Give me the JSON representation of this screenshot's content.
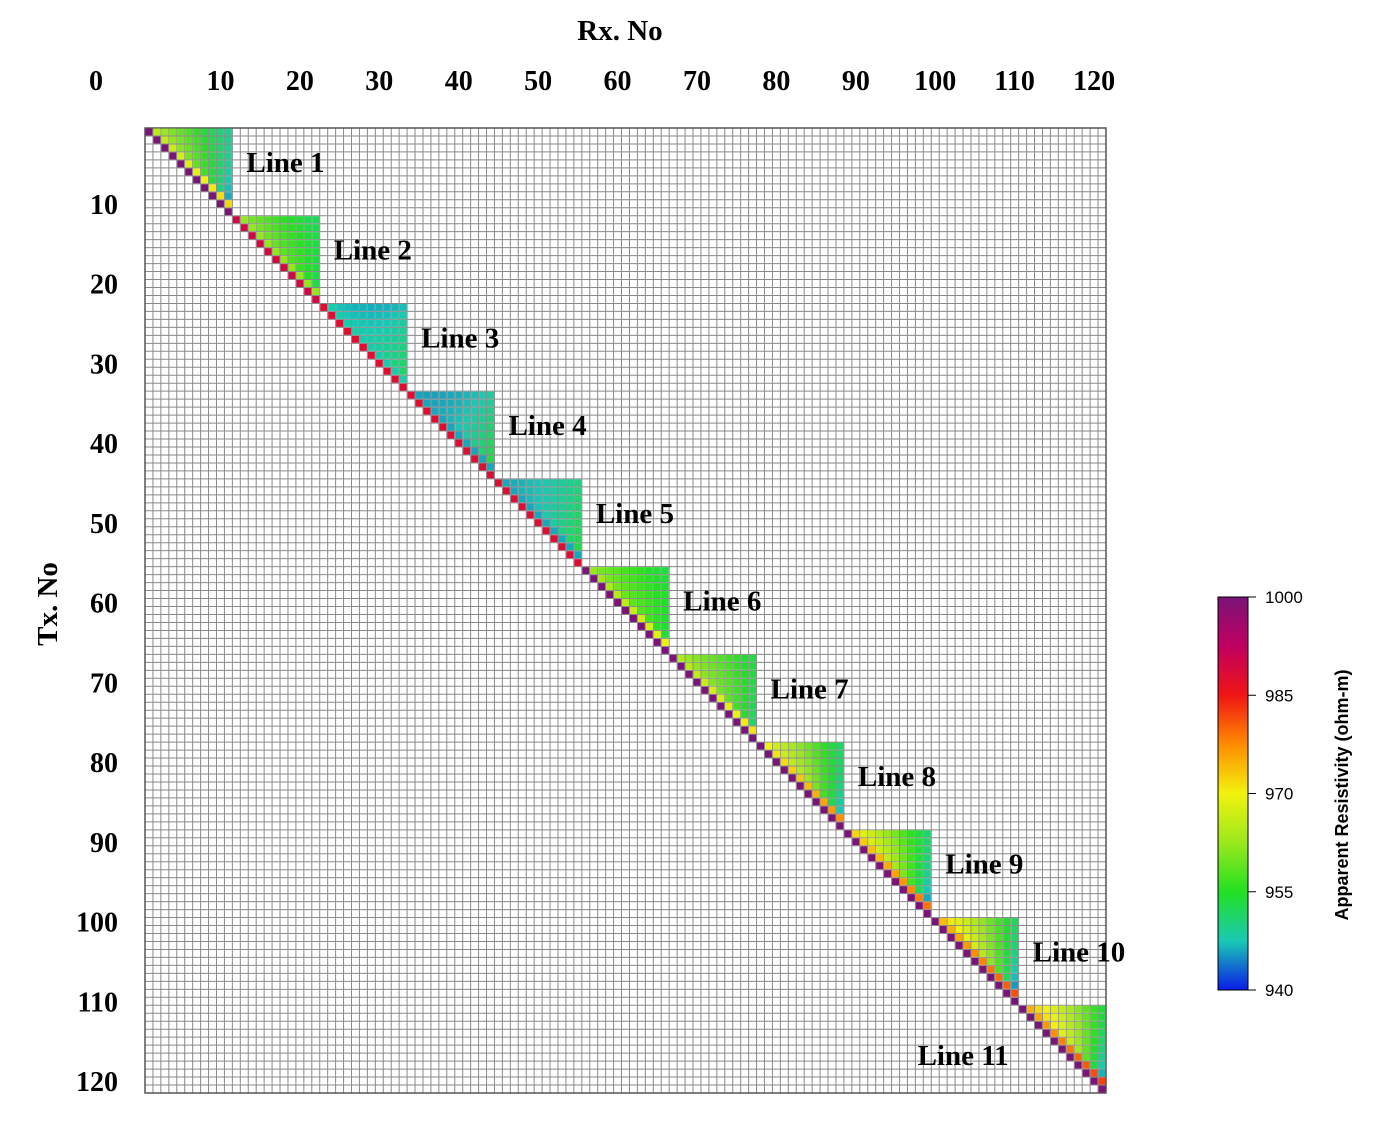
{
  "chart_data": {
    "type": "heatmap",
    "xlabel": "Rx. No",
    "ylabel": "Tx. No",
    "x_ticks": [
      0,
      10,
      20,
      30,
      40,
      50,
      60,
      70,
      80,
      90,
      100,
      110,
      120
    ],
    "y_ticks": [
      10,
      20,
      30,
      40,
      50,
      60,
      70,
      80,
      90,
      100,
      110,
      120
    ],
    "xlim": [
      0,
      121
    ],
    "ylim": [
      0,
      121
    ],
    "grid": true,
    "colorbar": {
      "label": "Apparent Resistivity (ohm-m)",
      "ticks": [
        940,
        955,
        970,
        985,
        1000
      ],
      "range": [
        940,
        1000
      ],
      "colormap": [
        "#0a1ce6",
        "#19c9b4",
        "#22e022",
        "#9be81c",
        "#f2f20f",
        "#ff8c00",
        "#f01515",
        "#c00060",
        "#7a1478"
      ]
    },
    "lines": [
      {
        "name": "Line 1",
        "tx_range": [
          1,
          11
        ],
        "rx_range": [
          1,
          11
        ],
        "diagonal": 1000,
        "near_diag": 965,
        "mid": 956,
        "far": 944
      },
      {
        "name": "Line 2",
        "tx_range": [
          12,
          22
        ],
        "rx_range": [
          12,
          22
        ],
        "diagonal": 990,
        "near_diag": 962,
        "mid": 955,
        "far": 952
      },
      {
        "name": "Line 3",
        "tx_range": [
          23,
          33
        ],
        "rx_range": [
          23,
          33
        ],
        "diagonal": 988,
        "near_diag": 948,
        "mid": 945,
        "far": 952
      },
      {
        "name": "Line 4",
        "tx_range": [
          34,
          44
        ],
        "rx_range": [
          34,
          44
        ],
        "diagonal": 988,
        "near_diag": 946,
        "mid": 945,
        "far": 954
      },
      {
        "name": "Line 5",
        "tx_range": [
          45,
          55
        ],
        "rx_range": [
          45,
          55
        ],
        "diagonal": 988,
        "near_diag": 946,
        "mid": 947,
        "far": 954
      },
      {
        "name": "Line 6",
        "tx_range": [
          56,
          66
        ],
        "rx_range": [
          56,
          66
        ],
        "diagonal": 1000,
        "near_diag": 962,
        "mid": 956,
        "far": 953
      },
      {
        "name": "Line 7",
        "tx_range": [
          67,
          77
        ],
        "rx_range": [
          67,
          77
        ],
        "diagonal": 1000,
        "near_diag": 964,
        "mid": 958,
        "far": 950
      },
      {
        "name": "Line 8",
        "tx_range": [
          78,
          88
        ],
        "rx_range": [
          78,
          88
        ],
        "diagonal": 1000,
        "near_diag": 970,
        "mid": 960,
        "far": 945
      },
      {
        "name": "Line 9",
        "tx_range": [
          89,
          99
        ],
        "rx_range": [
          89,
          99
        ],
        "diagonal": 1000,
        "near_diag": 972,
        "mid": 961,
        "far": 943
      },
      {
        "name": "Line 10",
        "tx_range": [
          100,
          110
        ],
        "rx_range": [
          100,
          110
        ],
        "diagonal": 1000,
        "near_diag": 974,
        "mid": 963,
        "far": 942
      },
      {
        "name": "Line 11",
        "tx_range": [
          111,
          121
        ],
        "rx_range": [
          111,
          121
        ],
        "diagonal": 1000,
        "near_diag": 975,
        "mid": 965,
        "far": 943
      }
    ]
  }
}
